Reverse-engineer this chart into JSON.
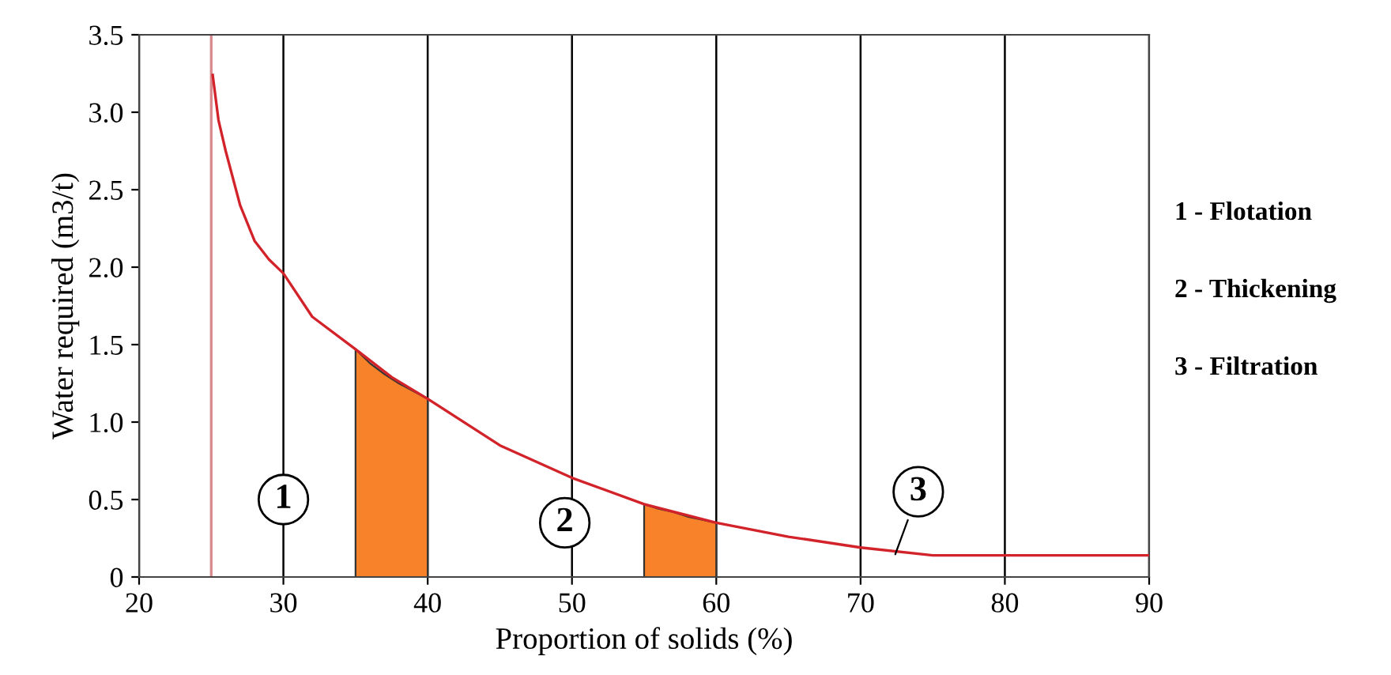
{
  "chart_data": {
    "type": "line",
    "xlabel": "Proportion of solids (%)",
    "ylabel": "Water required (m3/t)",
    "xlim": [
      20,
      90
    ],
    "xticks": [
      20,
      30,
      40,
      50,
      60,
      70,
      80,
      90
    ],
    "ylim": [
      0,
      3.5
    ],
    "yticks": [
      0,
      {
        "value": 0.5,
        "label": "0.5"
      },
      {
        "value": 1.0,
        "label": "1.0"
      },
      {
        "value": 1.5,
        "label": "1.5"
      },
      {
        "value": 2.0,
        "label": "2.0"
      },
      {
        "value": 2.5,
        "label": "2.5"
      },
      {
        "value": 3.0,
        "label": "3.0"
      },
      {
        "value": 3.5,
        "label": "3.5"
      }
    ],
    "grid": "x",
    "marker": "none",
    "line_style": "solid",
    "series": [
      {
        "type": "area",
        "color": "#f7822a",
        "x": [
          35,
          36,
          37,
          38,
          39,
          40
        ],
        "values": [
          1.47,
          1.38,
          1.31,
          1.25,
          1.2,
          1.15
        ]
      },
      {
        "type": "area",
        "color": "#f7822a",
        "x": [
          55,
          56,
          57,
          58,
          59,
          60
        ],
        "values": [
          0.47,
          0.44,
          0.42,
          0.39,
          0.37,
          0.35
        ]
      },
      {
        "color": "#d2232a",
        "x": [
          25.1,
          25.5,
          26,
          27,
          28,
          29,
          30,
          32,
          35,
          37.5,
          40,
          45,
          50,
          55,
          60,
          65,
          70,
          75,
          80,
          90
        ],
        "values": [
          3.24,
          2.95,
          2.75,
          2.4,
          2.17,
          2.05,
          1.96,
          1.68,
          1.47,
          1.29,
          1.15,
          0.85,
          0.64,
          0.47,
          0.35,
          0.26,
          0.19,
          0.14,
          0.14,
          0.14
        ]
      }
    ],
    "ref_lines": [
      {
        "axis": "x",
        "value": 25,
        "color": "#d98a8e"
      }
    ],
    "annotations": [
      {
        "text": "1",
        "x": 30,
        "y": 0.5
      },
      {
        "text": "2",
        "x": 49.5,
        "y": 0.35
      },
      {
        "text": "3",
        "x": 72.3,
        "y": 0.12
      },
      "1 - Flotation",
      "2 - Thickening",
      "3 - Filtration"
    ]
  }
}
